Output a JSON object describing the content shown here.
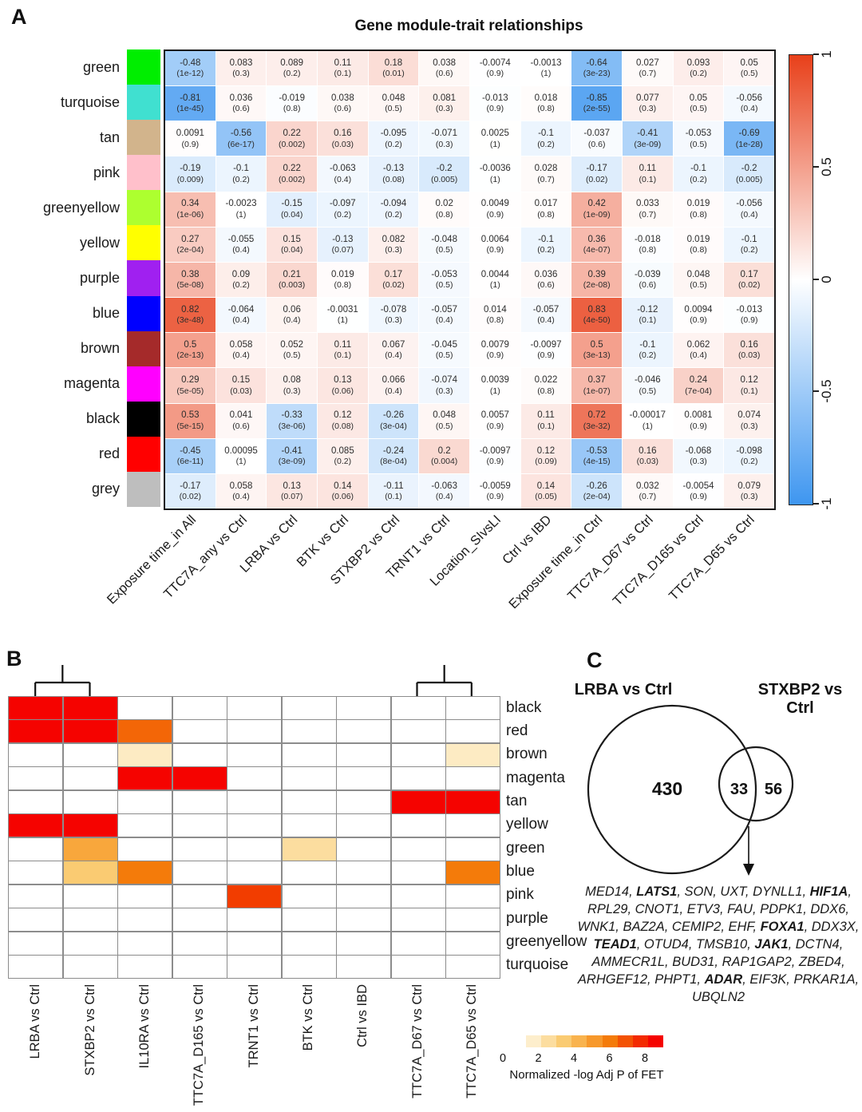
{
  "panels": {
    "a": "A",
    "b": "B",
    "c": "C"
  },
  "chart_data": [
    {
      "id": "module_trait_heatmap",
      "type": "heatmap",
      "panel_label": "A",
      "title": "Gene module-trait relationships",
      "modules": [
        {
          "name": "green",
          "color": "#00EE00"
        },
        {
          "name": "turquoise",
          "color": "#40E0D0"
        },
        {
          "name": "tan",
          "color": "#D2B48C"
        },
        {
          "name": "pink",
          "color": "#FFC0CB"
        },
        {
          "name": "greenyellow",
          "color": "#ADFF2F"
        },
        {
          "name": "yellow",
          "color": "#FFFF00"
        },
        {
          "name": "purple",
          "color": "#A020F0"
        },
        {
          "name": "blue",
          "color": "#0000FF"
        },
        {
          "name": "brown",
          "color": "#A52A2A"
        },
        {
          "name": "magenta",
          "color": "#FF00FF"
        },
        {
          "name": "black",
          "color": "#000000"
        },
        {
          "name": "red",
          "color": "#FF0000"
        },
        {
          "name": "grey",
          "color": "#BEBEBE"
        }
      ],
      "columns": [
        "Exposure time_in All",
        "TTC7A_any vs Ctrl",
        "LRBA vs Ctrl",
        "BTK vs Ctrl",
        "STXBP2 vs Ctrl",
        "TRNT1 vs Ctrl",
        "Location_SIvsLI",
        "Ctrl vs IBD",
        "Exposure time_in Ctrl",
        "TTC7A_D67 vs Ctrl",
        "TTC7A_D165 vs Ctrl",
        "TTC7A_D65 vs Ctrl"
      ],
      "correlation": [
        [
          -0.48,
          0.083,
          0.089,
          0.11,
          0.18,
          0.038,
          -0.0074,
          -0.0013,
          -0.64,
          0.027,
          0.093,
          0.05
        ],
        [
          -0.81,
          0.036,
          -0.019,
          0.038,
          0.048,
          0.081,
          -0.013,
          0.018,
          -0.85,
          0.077,
          0.05,
          -0.056
        ],
        [
          0.0091,
          -0.56,
          0.22,
          0.16,
          -0.095,
          -0.071,
          0.0025,
          -0.1,
          -0.037,
          -0.41,
          -0.053,
          -0.69
        ],
        [
          -0.19,
          -0.1,
          0.22,
          -0.063,
          -0.13,
          -0.2,
          -0.0036,
          0.028,
          -0.17,
          0.11,
          -0.1,
          -0.2
        ],
        [
          0.34,
          -0.0023,
          -0.15,
          -0.097,
          -0.094,
          0.02,
          0.0049,
          0.017,
          0.42,
          0.033,
          0.019,
          -0.056
        ],
        [
          0.27,
          -0.055,
          0.15,
          -0.13,
          0.082,
          -0.048,
          0.0064,
          -0.1,
          0.36,
          -0.018,
          0.019,
          -0.1
        ],
        [
          0.38,
          0.09,
          0.21,
          0.019,
          0.17,
          -0.053,
          0.0044,
          0.036,
          0.39,
          -0.039,
          0.048,
          0.17
        ],
        [
          0.82,
          -0.064,
          0.06,
          -0.0031,
          -0.078,
          -0.057,
          0.014,
          -0.057,
          0.83,
          -0.12,
          0.0094,
          -0.013
        ],
        [
          0.5,
          0.058,
          0.052,
          0.11,
          0.067,
          -0.045,
          0.0079,
          -0.0097,
          0.5,
          -0.1,
          0.062,
          0.16
        ],
        [
          0.29,
          0.15,
          0.08,
          0.13,
          0.066,
          -0.074,
          0.0039,
          0.022,
          0.37,
          -0.046,
          0.24,
          0.12
        ],
        [
          0.53,
          0.041,
          -0.33,
          0.12,
          -0.26,
          0.048,
          0.0057,
          0.11,
          0.72,
          -0.00017,
          0.0081,
          0.074
        ],
        [
          -0.45,
          0.00095,
          -0.41,
          0.085,
          -0.24,
          0.2,
          -0.0097,
          0.12,
          -0.53,
          0.16,
          -0.068,
          -0.098
        ],
        [
          -0.17,
          0.058,
          0.13,
          0.14,
          -0.11,
          -0.063,
          -0.0059,
          0.14,
          -0.26,
          0.032,
          -0.0054,
          0.079
        ]
      ],
      "pvalues": [
        [
          "1e-12",
          "0.3",
          "0.2",
          "0.1",
          "0.01",
          "0.6",
          "0.9",
          "1",
          "3e-23",
          "0.7",
          "0.2",
          "0.5"
        ],
        [
          "1e-45",
          "0.6",
          "0.8",
          "0.6",
          "0.5",
          "0.3",
          "0.9",
          "0.8",
          "2e-55",
          "0.3",
          "0.5",
          "0.4"
        ],
        [
          "0.9",
          "6e-17",
          "0.002",
          "0.03",
          "0.2",
          "0.3",
          "1",
          "0.2",
          "0.6",
          "3e-09",
          "0.5",
          "1e-28"
        ],
        [
          "0.009",
          "0.2",
          "0.002",
          "0.4",
          "0.08",
          "0.005",
          "1",
          "0.7",
          "0.02",
          "0.1",
          "0.2",
          "0.005"
        ],
        [
          "1e-06",
          "1",
          "0.04",
          "0.2",
          "0.2",
          "0.8",
          "0.9",
          "0.8",
          "1e-09",
          "0.7",
          "0.8",
          "0.4"
        ],
        [
          "2e-04",
          "0.4",
          "0.04",
          "0.07",
          "0.3",
          "0.5",
          "0.9",
          "0.2",
          "4e-07",
          "0.8",
          "0.8",
          "0.2"
        ],
        [
          "5e-08",
          "0.2",
          "0.003",
          "0.8",
          "0.02",
          "0.5",
          "1",
          "0.6",
          "2e-08",
          "0.6",
          "0.5",
          "0.02"
        ],
        [
          "3e-48",
          "0.4",
          "0.4",
          "1",
          "0.3",
          "0.4",
          "0.8",
          "0.4",
          "4e-50",
          "0.1",
          "0.9",
          "0.9"
        ],
        [
          "2e-13",
          "0.4",
          "0.5",
          "0.1",
          "0.4",
          "0.5",
          "0.9",
          "0.9",
          "3e-13",
          "0.2",
          "0.4",
          "0.03"
        ],
        [
          "5e-05",
          "0.03",
          "0.3",
          "0.06",
          "0.4",
          "0.3",
          "1",
          "0.8",
          "1e-07",
          "0.5",
          "7e-04",
          "0.1"
        ],
        [
          "5e-15",
          "0.6",
          "3e-06",
          "0.08",
          "3e-04",
          "0.5",
          "0.9",
          "0.1",
          "3e-32",
          "1",
          "0.9",
          "0.3"
        ],
        [
          "6e-11",
          "1",
          "3e-09",
          "0.2",
          "8e-04",
          "0.004",
          "0.9",
          "0.09",
          "4e-15",
          "0.03",
          "0.3",
          "0.2"
        ],
        [
          "0.02",
          "0.4",
          "0.07",
          "0.06",
          "0.1",
          "0.4",
          "0.9",
          "0.05",
          "2e-04",
          "0.7",
          "0.9",
          "0.3"
        ]
      ],
      "scale": {
        "min": -1,
        "max": 1,
        "tick_labels": [
          "1",
          "0.5",
          "0",
          "-0.5",
          "-1"
        ],
        "pos_color": "#E8401A",
        "neg_color": "#3E96F0"
      }
    },
    {
      "id": "module_enrichment_heatmap",
      "type": "heatmap",
      "panel_label": "B",
      "rows": [
        "black",
        "red",
        "brown",
        "magenta",
        "tan",
        "yellow",
        "green",
        "blue",
        "pink",
        "purple",
        "greenyellow",
        "turquoise"
      ],
      "columns": [
        "LRBA vs Ctrl",
        "STXBP2 vs Ctrl",
        "IL10RA vs Ctrl",
        "TTC7A_D165 vs Ctrl",
        "TRNT1 vs Ctrl",
        "BTK vs Ctrl",
        "Ctrl vs IBD",
        "TTC7A_D67 vs Ctrl",
        "TTC7A_D65 vs Ctrl"
      ],
      "values": [
        [
          9,
          9,
          0,
          0,
          0,
          0,
          0,
          0,
          0
        ],
        [
          9,
          9,
          6.5,
          0,
          0,
          0,
          0,
          0,
          0
        ],
        [
          0,
          0,
          1.2,
          0,
          0,
          0,
          0,
          0,
          1.2
        ],
        [
          0,
          0,
          9,
          9,
          0,
          0,
          0,
          0,
          0
        ],
        [
          0,
          0,
          0,
          0,
          0,
          0,
          0,
          9,
          9
        ],
        [
          9,
          9,
          0,
          0,
          0,
          0,
          0,
          0,
          0
        ],
        [
          0,
          4.5,
          0,
          0,
          0,
          2,
          0,
          0,
          0
        ],
        [
          0,
          3,
          6,
          0,
          0,
          0,
          0,
          0,
          6
        ],
        [
          0,
          0,
          0,
          0,
          7.5,
          0,
          0,
          0,
          0
        ],
        [
          0,
          0,
          0,
          0,
          0,
          0,
          0,
          0,
          0
        ],
        [
          0,
          0,
          0,
          0,
          0,
          0,
          0,
          0,
          0
        ],
        [
          0,
          0,
          0,
          0,
          0,
          0,
          0,
          0,
          0
        ]
      ],
      "dendrogram_pairs": [
        [
          0,
          1
        ],
        [
          7,
          8
        ]
      ],
      "legend": {
        "label": "Normalized -log Adj P of FET",
        "ticks": [
          0,
          2,
          4,
          6,
          8
        ],
        "range": [
          0,
          9
        ]
      }
    },
    {
      "id": "deg_overlap_venn",
      "type": "venn",
      "panel_label": "C",
      "sets": [
        {
          "label": "LRBA vs Ctrl",
          "unique": 430
        },
        {
          "label": "STXBP2 vs Ctrl",
          "unique": 56
        }
      ],
      "overlap": 33,
      "overlap_genes": [
        {
          "n": "MED14",
          "b": false
        },
        {
          "n": "LATS1",
          "b": true
        },
        {
          "n": "SON",
          "b": false
        },
        {
          "n": "UXT",
          "b": false
        },
        {
          "n": "DYNLL1",
          "b": false
        },
        {
          "n": "HIF1A",
          "b": true
        },
        {
          "n": "RPL29",
          "b": false
        },
        {
          "n": "CNOT1",
          "b": false
        },
        {
          "n": "ETV3",
          "b": false
        },
        {
          "n": "FAU",
          "b": false
        },
        {
          "n": "PDPK1",
          "b": false
        },
        {
          "n": "DDX6",
          "b": false
        },
        {
          "n": "WNK1",
          "b": false
        },
        {
          "n": "BAZ2A",
          "b": false
        },
        {
          "n": "CEMIP2",
          "b": false
        },
        {
          "n": "EHF",
          "b": false
        },
        {
          "n": "FOXA1",
          "b": true
        },
        {
          "n": "DDX3X",
          "b": false
        },
        {
          "n": "TEAD1",
          "b": true
        },
        {
          "n": "OTUD4",
          "b": false
        },
        {
          "n": "TMSB10",
          "b": false
        },
        {
          "n": "JAK1",
          "b": true
        },
        {
          "n": "DCTN4",
          "b": false
        },
        {
          "n": "AMMECR1L",
          "b": false
        },
        {
          "n": "BUD31",
          "b": false
        },
        {
          "n": "RAP1GAP2",
          "b": false
        },
        {
          "n": "ZBED4",
          "b": false
        },
        {
          "n": "ARHGEF12",
          "b": false
        },
        {
          "n": "PHPT1",
          "b": false
        },
        {
          "n": "ADAR",
          "b": true
        },
        {
          "n": "EIF3K",
          "b": false
        },
        {
          "n": "PRKAR1A",
          "b": false
        },
        {
          "n": "UBQLN2",
          "b": false
        }
      ]
    }
  ]
}
